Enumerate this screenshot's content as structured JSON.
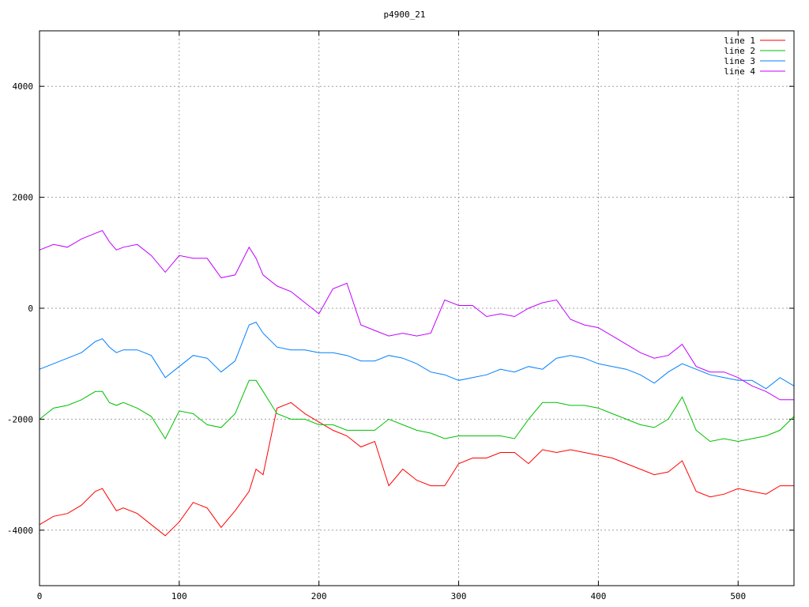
{
  "chart_data": {
    "type": "line",
    "title": "p4900_21",
    "xlabel": "",
    "ylabel": "",
    "xlim": [
      0,
      540
    ],
    "ylim": [
      -5000,
      5000
    ],
    "xticks": [
      0,
      100,
      200,
      300,
      400,
      500
    ],
    "yticks": [
      -4000,
      -2000,
      0,
      2000,
      4000
    ],
    "grid": true,
    "legend_position": "top-right",
    "x": [
      0,
      10,
      20,
      30,
      40,
      45,
      50,
      55,
      60,
      70,
      80,
      90,
      100,
      110,
      120,
      130,
      140,
      150,
      155,
      160,
      170,
      180,
      190,
      200,
      210,
      220,
      230,
      240,
      250,
      260,
      270,
      280,
      290,
      300,
      310,
      320,
      330,
      340,
      350,
      360,
      370,
      380,
      390,
      400,
      410,
      420,
      430,
      440,
      450,
      460,
      470,
      480,
      490,
      500,
      510,
      520,
      530,
      540
    ],
    "series": [
      {
        "name": "line 1",
        "color": "#ff0000",
        "values": [
          -3900,
          -3750,
          -3700,
          -3550,
          -3300,
          -3250,
          -3450,
          -3650,
          -3600,
          -3700,
          -3900,
          -4100,
          -3850,
          -3500,
          -3600,
          -3950,
          -3650,
          -3300,
          -2900,
          -3000,
          -1800,
          -1700,
          -1900,
          -2050,
          -2200,
          -2300,
          -2500,
          -2400,
          -3200,
          -2900,
          -3100,
          -3200,
          -3200,
          -2800,
          -2700,
          -2700,
          -2600,
          -2600,
          -2800,
          -2550,
          -2600,
          -2550,
          -2600,
          -2650,
          -2700,
          -2800,
          -2900,
          -3000,
          -2950,
          -2750,
          -3300,
          -3400,
          -3350,
          -3250,
          -3300,
          -3350,
          -3200,
          -3200
        ]
      },
      {
        "name": "line 2",
        "color": "#00c000",
        "values": [
          -2000,
          -1800,
          -1750,
          -1650,
          -1500,
          -1500,
          -1700,
          -1750,
          -1700,
          -1800,
          -1950,
          -2350,
          -1850,
          -1900,
          -2100,
          -2150,
          -1900,
          -1300,
          -1300,
          -1500,
          -1900,
          -2000,
          -2000,
          -2100,
          -2100,
          -2200,
          -2200,
          -2200,
          -2000,
          -2100,
          -2200,
          -2250,
          -2350,
          -2300,
          -2300,
          -2300,
          -2300,
          -2350,
          -2000,
          -1700,
          -1700,
          -1750,
          -1750,
          -1800,
          -1900,
          -2000,
          -2100,
          -2150,
          -2000,
          -1600,
          -2200,
          -2400,
          -2350,
          -2400,
          -2350,
          -2300,
          -2200,
          -1950
        ]
      },
      {
        "name": "line 3",
        "color": "#0080ff",
        "values": [
          -1100,
          -1000,
          -900,
          -800,
          -600,
          -550,
          -700,
          -800,
          -750,
          -750,
          -850,
          -1250,
          -1050,
          -850,
          -900,
          -1150,
          -950,
          -300,
          -250,
          -450,
          -700,
          -750,
          -750,
          -800,
          -800,
          -850,
          -950,
          -950,
          -850,
          -900,
          -1000,
          -1150,
          -1200,
          -1300,
          -1250,
          -1200,
          -1100,
          -1150,
          -1050,
          -1100,
          -900,
          -850,
          -900,
          -1000,
          -1050,
          -1100,
          -1200,
          -1350,
          -1150,
          -1000,
          -1100,
          -1200,
          -1250,
          -1300,
          -1300,
          -1450,
          -1250,
          -1400
        ]
      },
      {
        "name": "line 4",
        "color": "#c000ff",
        "values": [
          1050,
          1150,
          1100,
          1250,
          1350,
          1400,
          1200,
          1050,
          1100,
          1150,
          950,
          650,
          950,
          900,
          900,
          550,
          600,
          1100,
          900,
          600,
          400,
          300,
          100,
          -100,
          350,
          450,
          -300,
          -400,
          -500,
          -450,
          -500,
          -450,
          150,
          50,
          50,
          -150,
          -100,
          -150,
          0,
          100,
          150,
          -200,
          -300,
          -350,
          -500,
          -650,
          -800,
          -900,
          -850,
          -650,
          -1050,
          -1150,
          -1150,
          -1250,
          -1400,
          -1500,
          -1650,
          -1650
        ]
      }
    ]
  }
}
